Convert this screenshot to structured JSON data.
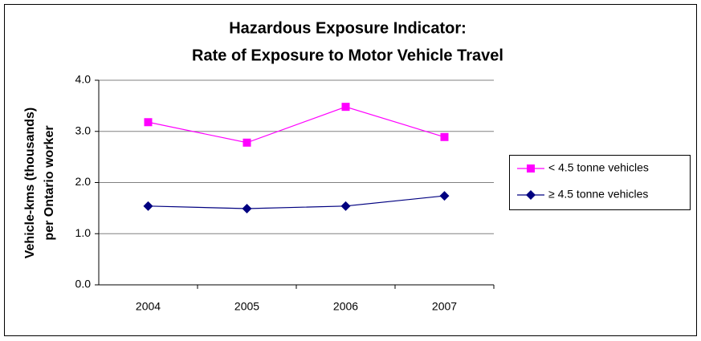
{
  "chart_data": {
    "type": "line",
    "title": [
      "Hazardous Exposure Indicator:",
      "Rate of Exposure to Motor Vehicle Travel"
    ],
    "y_label": [
      "Vehicle-kms (thousands)",
      "per Ontario worker"
    ],
    "categories": [
      "2004",
      "2005",
      "2006",
      "2007"
    ],
    "series": [
      {
        "name": "< 4.5 tonne vehicles",
        "color": "#ff00ff",
        "marker": "square",
        "values": [
          3.18,
          2.78,
          3.48,
          2.89
        ]
      },
      {
        "name": "≥ 4.5 tonne vehicles",
        "color": "#000080",
        "marker": "diamond",
        "values": [
          1.54,
          1.49,
          1.54,
          1.74
        ]
      }
    ],
    "ylim": [
      0,
      4
    ],
    "yticks": [
      {
        "value": 0,
        "label": "0.0"
      },
      {
        "value": 1,
        "label": "1.0"
      },
      {
        "value": 2,
        "label": "2.0"
      },
      {
        "value": 3,
        "label": "3.0"
      },
      {
        "value": 4,
        "label": "4.0"
      }
    ],
    "grid": true,
    "legend": "right"
  }
}
